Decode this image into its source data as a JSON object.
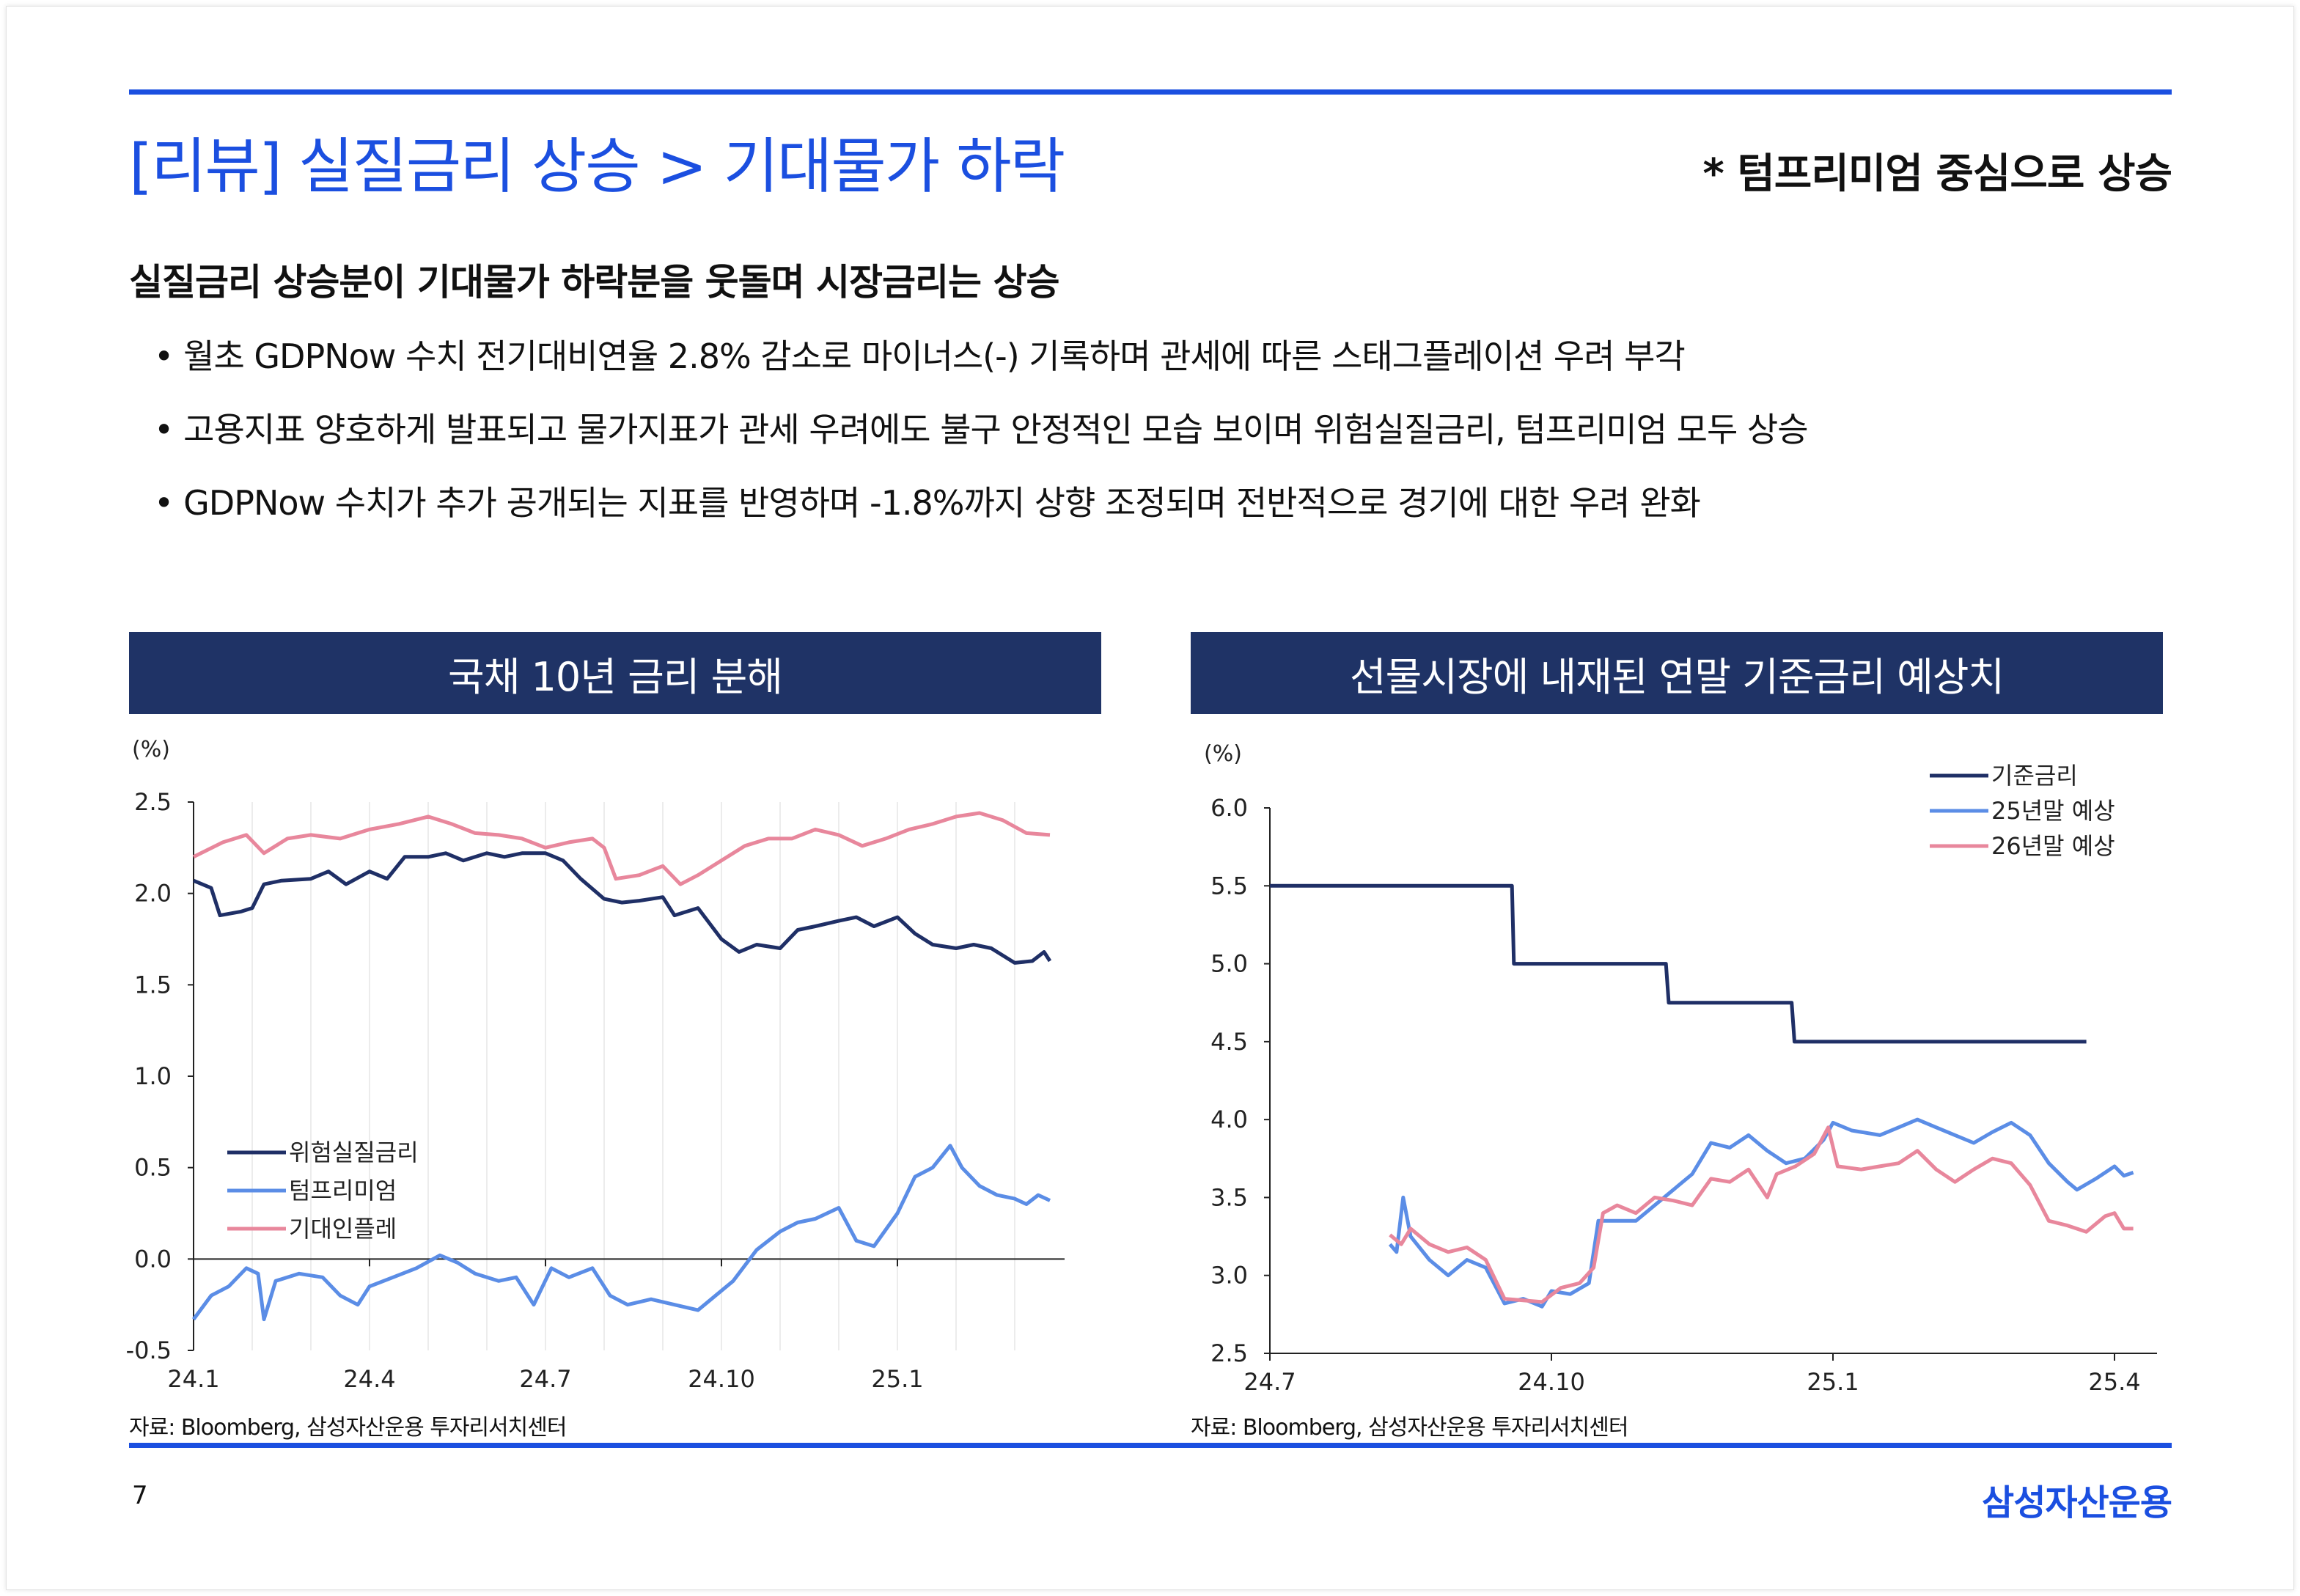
{
  "header": {
    "title": "[리뷰] 실질금리 상승 > 기대물가 하락",
    "note": "* 텀프리미엄 중심으로 상승"
  },
  "summary": {
    "heading": "실질금리 상승분이 기대물가 하락분을 웃돌며 시장금리는 상승",
    "bullets": [
      "월초 GDPNow 수치 전기대비연율 2.8% 감소로 마이너스(-) 기록하며 관세에 따른 스태그플레이션 우려 부각",
      "고용지표 양호하게 발표되고 물가지표가 관세 우려에도 불구 안정적인 모습 보이며 위험실질금리, 텀프리미엄 모두 상승",
      "GDPNow 수치가 추가 공개되는 지표를 반영하며 -1.8%까지 상향 조정되며 전반적으로 경기에 대한 우려 완화"
    ]
  },
  "colors": {
    "accent": "#1b4fe0",
    "header_bg": "#1f3366",
    "navy": "#1f2f66",
    "blue": "#5b8de6",
    "pink": "#e8879c"
  },
  "chart_data": [
    {
      "type": "line",
      "title": "국채 10년 금리 분해",
      "ylabel": "(%)",
      "ylim": [
        -0.5,
        2.5
      ],
      "yticks": [
        "2.5",
        "2.0",
        "1.5",
        "1.0",
        "0.5",
        "0.0",
        "-0.5"
      ],
      "ytick_values": [
        2.5,
        2.0,
        1.5,
        1.0,
        0.5,
        0.0,
        -0.5
      ],
      "x_unit": "months since 2024-01",
      "xlim": [
        0,
        15.3
      ],
      "xticks": [
        {
          "x": 0,
          "label": "24.1"
        },
        {
          "x": 3,
          "label": "24.4"
        },
        {
          "x": 6,
          "label": "24.7"
        },
        {
          "x": 9,
          "label": "24.10"
        },
        {
          "x": 12,
          "label": "25.1"
        }
      ],
      "legend_position": "bottom-left",
      "source": "자료: Bloomberg, 삼성자산운용 투자리서치센터",
      "series": [
        {
          "name": "위험실질금리",
          "color": "#1f2f66",
          "points": [
            [
              0,
              2.07
            ],
            [
              0.3,
              2.03
            ],
            [
              0.45,
              1.88
            ],
            [
              0.8,
              1.9
            ],
            [
              1.0,
              1.92
            ],
            [
              1.2,
              2.05
            ],
            [
              1.5,
              2.07
            ],
            [
              2,
              2.08
            ],
            [
              2.3,
              2.12
            ],
            [
              2.6,
              2.05
            ],
            [
              3,
              2.12
            ],
            [
              3.3,
              2.08
            ],
            [
              3.6,
              2.2
            ],
            [
              4,
              2.2
            ],
            [
              4.3,
              2.22
            ],
            [
              4.6,
              2.18
            ],
            [
              5,
              2.22
            ],
            [
              5.3,
              2.2
            ],
            [
              5.6,
              2.22
            ],
            [
              6,
              2.22
            ],
            [
              6.3,
              2.18
            ],
            [
              6.6,
              2.08
            ],
            [
              7,
              1.97
            ],
            [
              7.3,
              1.95
            ],
            [
              7.6,
              1.96
            ],
            [
              8,
              1.98
            ],
            [
              8.2,
              1.88
            ],
            [
              8.6,
              1.92
            ],
            [
              9,
              1.75
            ],
            [
              9.3,
              1.68
            ],
            [
              9.6,
              1.72
            ],
            [
              10,
              1.7
            ],
            [
              10.3,
              1.8
            ],
            [
              10.6,
              1.82
            ],
            [
              11,
              1.85
            ],
            [
              11.3,
              1.87
            ],
            [
              11.6,
              1.82
            ],
            [
              12,
              1.87
            ],
            [
              12.3,
              1.78
            ],
            [
              12.6,
              1.72
            ],
            [
              13,
              1.7
            ],
            [
              13.3,
              1.72
            ],
            [
              13.6,
              1.7
            ],
            [
              14,
              1.62
            ],
            [
              14.3,
              1.63
            ],
            [
              14.5,
              1.68
            ],
            [
              14.6,
              1.63
            ]
          ]
        },
        {
          "name": "텀프리미엄",
          "color": "#5b8de6",
          "points": [
            [
              0,
              -0.33
            ],
            [
              0.3,
              -0.2
            ],
            [
              0.6,
              -0.15
            ],
            [
              0.9,
              -0.05
            ],
            [
              1.1,
              -0.08
            ],
            [
              1.2,
              -0.33
            ],
            [
              1.4,
              -0.12
            ],
            [
              1.8,
              -0.08
            ],
            [
              2.2,
              -0.1
            ],
            [
              2.5,
              -0.2
            ],
            [
              2.8,
              -0.25
            ],
            [
              3,
              -0.15
            ],
            [
              3.4,
              -0.1
            ],
            [
              3.8,
              -0.05
            ],
            [
              4.2,
              0.02
            ],
            [
              4.5,
              -0.02
            ],
            [
              4.8,
              -0.08
            ],
            [
              5.2,
              -0.12
            ],
            [
              5.5,
              -0.1
            ],
            [
              5.8,
              -0.25
            ],
            [
              6.1,
              -0.05
            ],
            [
              6.4,
              -0.1
            ],
            [
              6.8,
              -0.05
            ],
            [
              7.1,
              -0.2
            ],
            [
              7.4,
              -0.25
            ],
            [
              7.8,
              -0.22
            ],
            [
              8.2,
              -0.25
            ],
            [
              8.6,
              -0.28
            ],
            [
              8.9,
              -0.2
            ],
            [
              9.2,
              -0.12
            ],
            [
              9.6,
              0.05
            ],
            [
              10,
              0.15
            ],
            [
              10.3,
              0.2
            ],
            [
              10.6,
              0.22
            ],
            [
              11,
              0.28
            ],
            [
              11.3,
              0.1
            ],
            [
              11.6,
              0.07
            ],
            [
              12,
              0.25
            ],
            [
              12.3,
              0.45
            ],
            [
              12.6,
              0.5
            ],
            [
              12.9,
              0.62
            ],
            [
              13.1,
              0.5
            ],
            [
              13.4,
              0.4
            ],
            [
              13.7,
              0.35
            ],
            [
              14,
              0.33
            ],
            [
              14.2,
              0.3
            ],
            [
              14.4,
              0.35
            ],
            [
              14.6,
              0.32
            ]
          ]
        },
        {
          "name": "기대인플레",
          "color": "#e8879c",
          "points": [
            [
              0,
              2.2
            ],
            [
              0.5,
              2.28
            ],
            [
              0.9,
              2.32
            ],
            [
              1.2,
              2.22
            ],
            [
              1.6,
              2.3
            ],
            [
              2,
              2.32
            ],
            [
              2.5,
              2.3
            ],
            [
              3,
              2.35
            ],
            [
              3.5,
              2.38
            ],
            [
              4,
              2.42
            ],
            [
              4.4,
              2.38
            ],
            [
              4.8,
              2.33
            ],
            [
              5.2,
              2.32
            ],
            [
              5.6,
              2.3
            ],
            [
              6,
              2.25
            ],
            [
              6.4,
              2.28
            ],
            [
              6.8,
              2.3
            ],
            [
              7,
              2.25
            ],
            [
              7.2,
              2.08
            ],
            [
              7.6,
              2.1
            ],
            [
              8,
              2.15
            ],
            [
              8.3,
              2.05
            ],
            [
              8.6,
              2.1
            ],
            [
              9,
              2.18
            ],
            [
              9.4,
              2.26
            ],
            [
              9.8,
              2.3
            ],
            [
              10.2,
              2.3
            ],
            [
              10.6,
              2.35
            ],
            [
              11,
              2.32
            ],
            [
              11.4,
              2.26
            ],
            [
              11.8,
              2.3
            ],
            [
              12.2,
              2.35
            ],
            [
              12.6,
              2.38
            ],
            [
              13,
              2.42
            ],
            [
              13.4,
              2.44
            ],
            [
              13.8,
              2.4
            ],
            [
              14.2,
              2.33
            ],
            [
              14.6,
              2.32
            ]
          ]
        }
      ]
    },
    {
      "type": "line",
      "title": "선물시장에 내재된 연말 기준금리 예상치",
      "ylabel": "(%)",
      "ylim": [
        2.5,
        6.0
      ],
      "yticks": [
        "6.0",
        "5.5",
        "5.0",
        "4.5",
        "4.0",
        "3.5",
        "3.0",
        "2.5"
      ],
      "ytick_values": [
        6.0,
        5.5,
        5.0,
        4.5,
        4.0,
        3.5,
        3.0,
        2.5
      ],
      "x_unit": "months since 2024-07",
      "xlim": [
        0,
        9.4
      ],
      "xticks": [
        {
          "x": 0,
          "label": "24.7"
        },
        {
          "x": 3,
          "label": "24.10"
        },
        {
          "x": 6,
          "label": "25.1"
        },
        {
          "x": 9,
          "label": "25.4"
        }
      ],
      "legend_position": "top-right",
      "source": "자료: Bloomberg, 삼성자산운용 투자리서치센터",
      "series": [
        {
          "name": "기준금리",
          "color": "#1f2f66",
          "points": [
            [
              0,
              5.5
            ],
            [
              2.58,
              5.5
            ],
            [
              2.6,
              5.0
            ],
            [
              4.22,
              5.0
            ],
            [
              4.25,
              4.75
            ],
            [
              5.56,
              4.75
            ],
            [
              5.59,
              4.5
            ],
            [
              8.7,
              4.5
            ]
          ]
        },
        {
          "name": "25년말 예상",
          "color": "#5b8de6",
          "points": [
            [
              1.28,
              3.2
            ],
            [
              1.35,
              3.15
            ],
            [
              1.42,
              3.5
            ],
            [
              1.5,
              3.25
            ],
            [
              1.7,
              3.1
            ],
            [
              1.9,
              3.0
            ],
            [
              2.1,
              3.1
            ],
            [
              2.3,
              3.05
            ],
            [
              2.5,
              2.82
            ],
            [
              2.7,
              2.85
            ],
            [
              2.9,
              2.8
            ],
            [
              3.0,
              2.9
            ],
            [
              3.2,
              2.88
            ],
            [
              3.4,
              2.95
            ],
            [
              3.5,
              3.35
            ],
            [
              3.7,
              3.35
            ],
            [
              3.9,
              3.35
            ],
            [
              4.1,
              3.45
            ],
            [
              4.3,
              3.55
            ],
            [
              4.5,
              3.65
            ],
            [
              4.7,
              3.85
            ],
            [
              4.9,
              3.82
            ],
            [
              5.1,
              3.9
            ],
            [
              5.3,
              3.8
            ],
            [
              5.5,
              3.72
            ],
            [
              5.7,
              3.75
            ],
            [
              5.9,
              3.87
            ],
            [
              6.0,
              3.98
            ],
            [
              6.2,
              3.93
            ],
            [
              6.5,
              3.9
            ],
            [
              6.7,
              3.95
            ],
            [
              6.9,
              4.0
            ],
            [
              7.1,
              3.95
            ],
            [
              7.3,
              3.9
            ],
            [
              7.5,
              3.85
            ],
            [
              7.7,
              3.92
            ],
            [
              7.9,
              3.98
            ],
            [
              8.1,
              3.9
            ],
            [
              8.3,
              3.72
            ],
            [
              8.5,
              3.6
            ],
            [
              8.6,
              3.55
            ],
            [
              8.8,
              3.62
            ],
            [
              9.0,
              3.7
            ],
            [
              9.1,
              3.64
            ],
            [
              9.2,
              3.66
            ]
          ]
        },
        {
          "name": "26년말 예상",
          "color": "#e8879c",
          "points": [
            [
              1.28,
              3.26
            ],
            [
              1.4,
              3.2
            ],
            [
              1.5,
              3.3
            ],
            [
              1.7,
              3.2
            ],
            [
              1.9,
              3.15
            ],
            [
              2.1,
              3.18
            ],
            [
              2.3,
              3.1
            ],
            [
              2.5,
              2.85
            ],
            [
              2.9,
              2.83
            ],
            [
              3.1,
              2.92
            ],
            [
              3.3,
              2.95
            ],
            [
              3.45,
              3.05
            ],
            [
              3.55,
              3.4
            ],
            [
              3.7,
              3.45
            ],
            [
              3.9,
              3.4
            ],
            [
              4.1,
              3.5
            ],
            [
              4.3,
              3.48
            ],
            [
              4.5,
              3.45
            ],
            [
              4.7,
              3.62
            ],
            [
              4.9,
              3.6
            ],
            [
              5.1,
              3.68
            ],
            [
              5.3,
              3.5
            ],
            [
              5.4,
              3.65
            ],
            [
              5.6,
              3.7
            ],
            [
              5.8,
              3.78
            ],
            [
              5.95,
              3.95
            ],
            [
              6.05,
              3.7
            ],
            [
              6.3,
              3.68
            ],
            [
              6.5,
              3.7
            ],
            [
              6.7,
              3.72
            ],
            [
              6.9,
              3.8
            ],
            [
              7.1,
              3.68
            ],
            [
              7.3,
              3.6
            ],
            [
              7.5,
              3.68
            ],
            [
              7.7,
              3.75
            ],
            [
              7.9,
              3.72
            ],
            [
              8.1,
              3.58
            ],
            [
              8.3,
              3.35
            ],
            [
              8.5,
              3.32
            ],
            [
              8.7,
              3.28
            ],
            [
              8.9,
              3.38
            ],
            [
              9.0,
              3.4
            ],
            [
              9.1,
              3.3
            ],
            [
              9.2,
              3.3
            ]
          ]
        }
      ]
    }
  ],
  "footer": {
    "page": "7",
    "brand": "삼성자산운용"
  }
}
